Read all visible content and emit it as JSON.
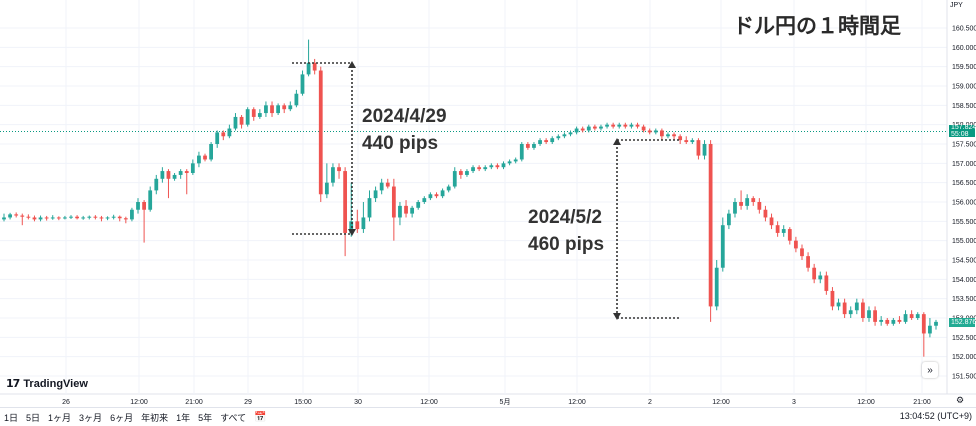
{
  "title": "ドル円の１時間足",
  "currency": "JPY",
  "brand": "TradingView",
  "annotations": [
    {
      "date": "2024/4/29",
      "pips": "440 pips"
    },
    {
      "date": "2024/5/2",
      "pips": "460 pips"
    }
  ],
  "price_labels": {
    "current": "157.824",
    "countdown": "55:08",
    "last": "152.876"
  },
  "bottom_bar": {
    "ranges": [
      "1日",
      "5日",
      "1ヶ月",
      "3ヶ月",
      "6ヶ月",
      "年初来",
      "1年",
      "5年",
      "すべて"
    ],
    "clock": "13:04:52 (UTC+9)"
  },
  "colors": {
    "up": "#26a69a",
    "down": "#ef5350",
    "current_price": "#089981",
    "last_price": "#22ab94",
    "grid": "#f0f3fa"
  },
  "chart_data": {
    "type": "candlestick",
    "title": "ドル円の１時間足",
    "x_tick_labels": [
      "26",
      "12:00",
      "21:00",
      "29",
      "15:00",
      "30",
      "12:00",
      "5月",
      "12:00",
      "2",
      "12:00",
      "3",
      "12:00",
      "21:00"
    ],
    "y_tick_labels": [
      "151.500",
      "152.000",
      "152.500",
      "153.000",
      "153.500",
      "154.000",
      "154.500",
      "155.000",
      "155.500",
      "156.000",
      "156.500",
      "157.000",
      "157.500",
      "158.000",
      "158.500",
      "159.000",
      "159.500",
      "160.000",
      "160.500"
    ],
    "ylim": [
      151.4,
      160.9
    ],
    "current_price": 157.824,
    "last_price": 152.876,
    "candles": [
      [
        155.55,
        155.6,
        155.5,
        155.7
      ],
      [
        155.6,
        155.68,
        155.55,
        155.72
      ],
      [
        155.68,
        155.65,
        155.6,
        155.73
      ],
      [
        155.65,
        155.62,
        155.4,
        155.7
      ],
      [
        155.62,
        155.6,
        155.55,
        155.68
      ],
      [
        155.6,
        155.55,
        155.5,
        155.65
      ],
      [
        155.55,
        155.6,
        155.5,
        155.65
      ],
      [
        155.6,
        155.58,
        155.52,
        155.64
      ],
      [
        155.58,
        155.6,
        155.54,
        155.66
      ],
      [
        155.6,
        155.58,
        155.53,
        155.63
      ],
      [
        155.58,
        155.6,
        155.55,
        155.64
      ],
      [
        155.6,
        155.62,
        155.56,
        155.66
      ],
      [
        155.62,
        155.58,
        155.55,
        155.66
      ],
      [
        155.58,
        155.6,
        155.54,
        155.64
      ],
      [
        155.6,
        155.62,
        155.55,
        155.65
      ],
      [
        155.62,
        155.6,
        155.55,
        155.66
      ],
      [
        155.6,
        155.58,
        155.5,
        155.64
      ],
      [
        155.58,
        155.6,
        155.53,
        155.63
      ],
      [
        155.6,
        155.62,
        155.55,
        155.67
      ],
      [
        155.62,
        155.58,
        155.5,
        155.65
      ],
      [
        155.58,
        155.55,
        155.45,
        155.62
      ],
      [
        155.55,
        155.8,
        155.5,
        155.85
      ],
      [
        155.8,
        156.0,
        155.7,
        156.1
      ],
      [
        156.0,
        155.8,
        154.95,
        156.05
      ],
      [
        155.8,
        156.3,
        155.75,
        156.4
      ],
      [
        156.3,
        156.6,
        156.2,
        156.7
      ],
      [
        156.6,
        156.8,
        156.5,
        156.9
      ],
      [
        156.8,
        156.6,
        156.1,
        156.85
      ],
      [
        156.6,
        156.7,
        156.55,
        156.75
      ],
      [
        156.7,
        156.8,
        156.6,
        156.85
      ],
      [
        156.8,
        156.75,
        156.2,
        156.85
      ],
      [
        156.75,
        157.0,
        156.7,
        157.1
      ],
      [
        157.0,
        157.2,
        156.9,
        157.3
      ],
      [
        157.2,
        157.1,
        157.05,
        157.25
      ],
      [
        157.1,
        157.5,
        157.05,
        157.55
      ],
      [
        157.5,
        157.8,
        157.4,
        157.85
      ],
      [
        157.8,
        157.7,
        157.6,
        157.85
      ],
      [
        157.7,
        157.9,
        157.65,
        158.0
      ],
      [
        157.9,
        158.2,
        157.85,
        158.3
      ],
      [
        158.2,
        158.0,
        157.9,
        158.25
      ],
      [
        158.0,
        158.4,
        157.95,
        158.45
      ],
      [
        158.4,
        158.2,
        158.1,
        158.45
      ],
      [
        158.2,
        158.3,
        158.15,
        158.4
      ],
      [
        158.3,
        158.5,
        158.2,
        158.6
      ],
      [
        158.5,
        158.3,
        158.2,
        158.6
      ],
      [
        158.3,
        158.5,
        158.25,
        158.55
      ],
      [
        158.5,
        158.4,
        158.3,
        158.55
      ],
      [
        158.4,
        158.5,
        158.35,
        158.6
      ],
      [
        158.5,
        158.8,
        158.45,
        158.9
      ],
      [
        158.8,
        159.3,
        158.75,
        159.4
      ],
      [
        159.3,
        159.6,
        159.25,
        160.2
      ],
      [
        159.6,
        159.4,
        159.3,
        159.7
      ],
      [
        159.4,
        156.2,
        156.0,
        159.5
      ],
      [
        156.2,
        156.5,
        156.1,
        157.0
      ],
      [
        156.5,
        156.9,
        156.4,
        157.0
      ],
      [
        156.9,
        156.8,
        156.6,
        157.0
      ],
      [
        156.8,
        155.2,
        154.6,
        156.9
      ],
      [
        155.2,
        155.5,
        155.1,
        156.5
      ],
      [
        155.5,
        155.3,
        155.2,
        155.8
      ],
      [
        155.3,
        155.6,
        155.2,
        156.0
      ],
      [
        155.6,
        156.1,
        155.5,
        156.3
      ],
      [
        156.1,
        156.3,
        156.0,
        156.4
      ],
      [
        156.3,
        156.5,
        156.2,
        156.6
      ],
      [
        156.5,
        156.4,
        156.35,
        156.6
      ],
      [
        156.4,
        155.6,
        155.0,
        156.6
      ],
      [
        155.6,
        155.9,
        155.4,
        156.0
      ],
      [
        155.9,
        155.7,
        155.6,
        156.05
      ],
      [
        155.7,
        155.85,
        155.6,
        155.9
      ],
      [
        155.85,
        156.0,
        155.8,
        156.05
      ],
      [
        156.0,
        156.1,
        155.95,
        156.15
      ],
      [
        156.1,
        156.2,
        156.05,
        156.25
      ],
      [
        156.2,
        156.15,
        156.1,
        156.25
      ],
      [
        156.15,
        156.3,
        156.1,
        156.35
      ],
      [
        156.3,
        156.4,
        156.25,
        156.45
      ],
      [
        156.4,
        156.8,
        156.35,
        156.9
      ],
      [
        156.8,
        156.7,
        156.6,
        156.85
      ],
      [
        156.7,
        156.8,
        156.65,
        156.85
      ],
      [
        156.8,
        156.9,
        156.75,
        156.95
      ],
      [
        156.9,
        156.85,
        156.8,
        156.95
      ],
      [
        156.85,
        156.9,
        156.8,
        156.95
      ],
      [
        156.9,
        156.95,
        156.85,
        157.0
      ],
      [
        156.95,
        156.9,
        156.85,
        157.0
      ],
      [
        156.9,
        157.0,
        156.85,
        157.05
      ],
      [
        157.0,
        157.05,
        156.95,
        157.1
      ],
      [
        157.05,
        157.1,
        157.0,
        157.15
      ],
      [
        157.1,
        157.5,
        157.05,
        157.55
      ],
      [
        157.5,
        157.4,
        157.35,
        157.55
      ],
      [
        157.4,
        157.5,
        157.35,
        157.55
      ],
      [
        157.5,
        157.6,
        157.45,
        157.65
      ],
      [
        157.6,
        157.55,
        157.5,
        157.65
      ],
      [
        157.55,
        157.65,
        157.5,
        157.7
      ],
      [
        157.65,
        157.7,
        157.6,
        157.75
      ],
      [
        157.7,
        157.75,
        157.65,
        157.8
      ],
      [
        157.75,
        157.8,
        157.7,
        157.85
      ],
      [
        157.8,
        157.9,
        157.75,
        157.95
      ],
      [
        157.9,
        157.85,
        157.8,
        157.95
      ],
      [
        157.85,
        157.95,
        157.8,
        158.0
      ],
      [
        157.95,
        157.9,
        157.85,
        158.0
      ],
      [
        157.9,
        157.95,
        157.85,
        158.0
      ],
      [
        157.95,
        158.0,
        157.9,
        158.05
      ],
      [
        158.0,
        157.95,
        157.9,
        158.05
      ],
      [
        157.95,
        158.0,
        157.9,
        158.05
      ],
      [
        158.0,
        157.95,
        157.9,
        158.05
      ],
      [
        157.95,
        158.0,
        157.9,
        158.05
      ],
      [
        158.0,
        157.95,
        157.9,
        158.05
      ],
      [
        157.95,
        157.85,
        157.8,
        158.0
      ],
      [
        157.85,
        157.8,
        157.75,
        157.9
      ],
      [
        157.8,
        157.85,
        157.75,
        157.9
      ],
      [
        157.85,
        157.7,
        157.6,
        157.9
      ],
      [
        157.7,
        157.75,
        157.65,
        157.8
      ],
      [
        157.75,
        157.7,
        157.6,
        157.8
      ],
      [
        157.7,
        157.6,
        157.5,
        157.75
      ],
      [
        157.6,
        157.55,
        157.5,
        157.7
      ],
      [
        157.55,
        157.6,
        157.5,
        157.65
      ],
      [
        157.6,
        157.2,
        157.1,
        157.65
      ],
      [
        157.2,
        157.5,
        157.1,
        157.6
      ],
      [
        157.5,
        153.3,
        152.9,
        157.6
      ],
      [
        153.3,
        154.3,
        153.2,
        154.5
      ],
      [
        154.3,
        155.4,
        154.2,
        155.6
      ],
      [
        155.4,
        155.7,
        155.3,
        155.8
      ],
      [
        155.7,
        156.0,
        155.6,
        156.1
      ],
      [
        156.0,
        155.9,
        155.8,
        156.3
      ],
      [
        155.9,
        156.1,
        155.8,
        156.2
      ],
      [
        156.1,
        156.0,
        155.9,
        156.15
      ],
      [
        156.0,
        155.8,
        155.7,
        156.1
      ],
      [
        155.8,
        155.6,
        155.5,
        155.9
      ],
      [
        155.6,
        155.4,
        155.3,
        155.7
      ],
      [
        155.4,
        155.2,
        155.1,
        155.5
      ],
      [
        155.2,
        155.3,
        155.1,
        155.4
      ],
      [
        155.3,
        155.0,
        154.9,
        155.35
      ],
      [
        155.0,
        154.8,
        154.7,
        155.1
      ],
      [
        154.8,
        154.6,
        154.5,
        154.9
      ],
      [
        154.6,
        154.3,
        154.2,
        154.7
      ],
      [
        154.3,
        154.0,
        153.9,
        154.4
      ],
      [
        154.0,
        154.1,
        153.9,
        154.2
      ],
      [
        154.1,
        153.7,
        153.6,
        154.2
      ],
      [
        153.7,
        153.3,
        153.2,
        153.8
      ],
      [
        153.3,
        153.4,
        153.2,
        153.5
      ],
      [
        153.4,
        153.1,
        153.0,
        153.5
      ],
      [
        153.1,
        153.2,
        153.0,
        153.3
      ],
      [
        153.2,
        153.4,
        153.1,
        153.5
      ],
      [
        153.4,
        153.0,
        152.9,
        153.5
      ],
      [
        153.0,
        153.2,
        152.9,
        153.3
      ],
      [
        153.2,
        152.9,
        152.8,
        153.3
      ],
      [
        152.9,
        152.95,
        152.8,
        153.05
      ],
      [
        152.95,
        152.85,
        152.8,
        153.0
      ],
      [
        152.85,
        152.95,
        152.8,
        153.0
      ],
      [
        152.95,
        152.9,
        152.85,
        153.05
      ],
      [
        152.9,
        153.1,
        152.85,
        153.2
      ],
      [
        153.1,
        153.0,
        152.95,
        153.2
      ],
      [
        153.0,
        153.1,
        152.95,
        153.15
      ],
      [
        153.1,
        152.6,
        152.0,
        153.15
      ],
      [
        152.6,
        152.8,
        152.5,
        153.0
      ],
      [
        152.8,
        152.9,
        152.7,
        152.95
      ]
    ]
  }
}
